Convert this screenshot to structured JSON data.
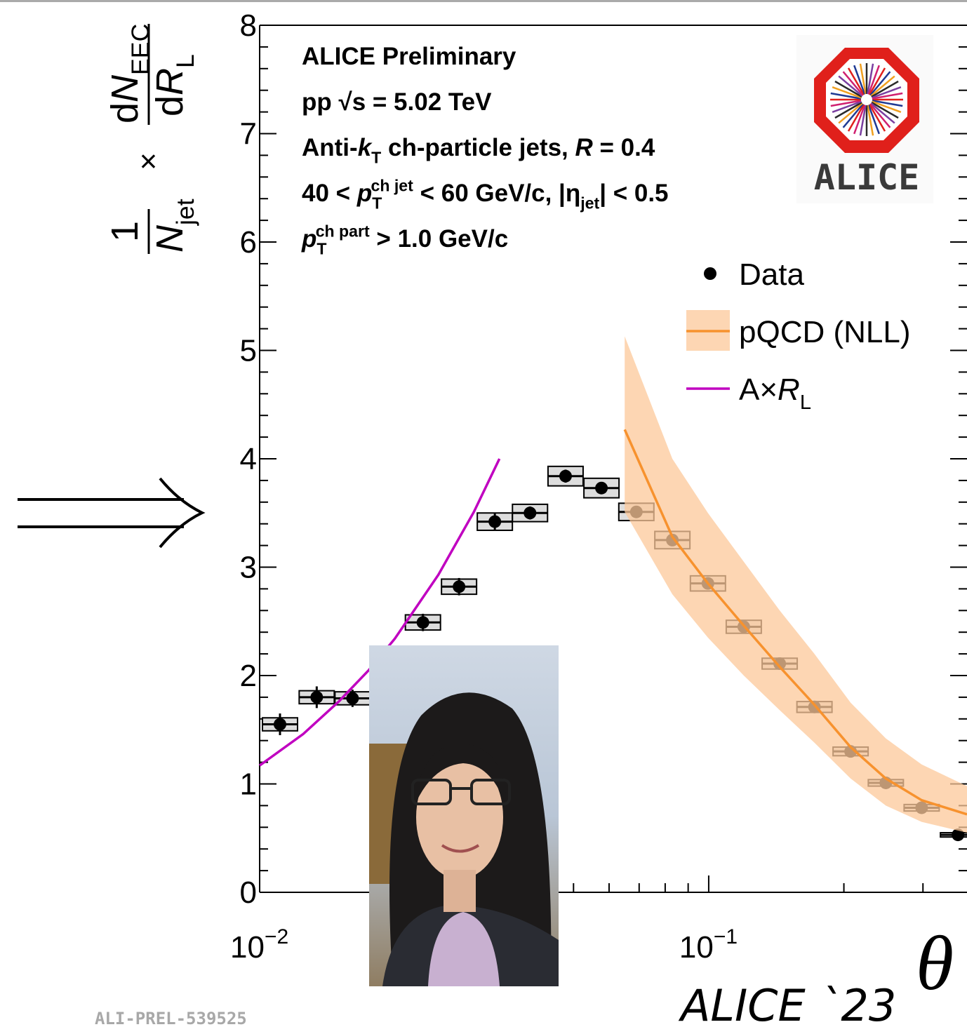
{
  "chart_data": {
    "type": "scatter",
    "xscale": "log",
    "xlim": [
      0.01,
      0.376
    ],
    "ylim": [
      0,
      8
    ],
    "xticks": [
      {
        "value": 0.01,
        "label": "10",
        "exponent": "−2"
      },
      {
        "value": 0.1,
        "label": "10",
        "exponent": "−1"
      }
    ],
    "xminor": [
      0.02,
      0.03,
      0.04,
      0.05,
      0.06,
      0.07,
      0.08,
      0.09,
      0.2,
      0.3
    ],
    "yticks": [
      0,
      1,
      2,
      3,
      4,
      5,
      6,
      7,
      8
    ],
    "yminor": [
      0.2,
      0.4,
      0.6,
      0.8,
      1.2,
      1.4,
      1.6,
      1.8,
      2.2,
      2.4,
      2.6,
      2.8,
      3.2,
      3.4,
      3.6,
      3.8,
      4.2,
      4.4,
      4.6,
      4.8,
      5.2,
      5.4,
      5.6,
      5.8,
      6.2,
      6.4,
      6.6,
      6.8,
      7.2,
      7.4,
      7.6,
      7.8
    ],
    "x_label": "θ",
    "y_label": {
      "num1": "1",
      "den1": [
        {
          "text": "N",
          "italic": true
        },
        {
          "text": "jet",
          "pos": "sub"
        }
      ],
      "times": "×",
      "num2": [
        {
          "text": "d"
        },
        {
          "text": "N",
          "italic": true
        },
        {
          "text": "EEC",
          "pos": "sub"
        }
      ],
      "den2": [
        {
          "text": "d"
        },
        {
          "text": "R",
          "italic": true
        },
        {
          "text": "L",
          "pos": "sub"
        }
      ]
    },
    "annotations": [
      [
        {
          "text": "ALICE Preliminary"
        }
      ],
      [
        {
          "text": "pp  √s = 5.02 TeV"
        }
      ],
      [
        {
          "text": "Anti-"
        },
        {
          "text": "k",
          "italic": true
        },
        {
          "text": "T",
          "pos": "sub"
        },
        {
          "text": " ch-particle jets,  "
        },
        {
          "text": "R",
          "italic": true
        },
        {
          "text": " = 0.4"
        }
      ],
      [
        {
          "text": "40 <  "
        },
        {
          "text": "p",
          "italic": true
        },
        {
          "text": "T",
          "pos": "sub"
        },
        {
          "text": "ch jet",
          "pos": "sup",
          "stacked": true
        },
        {
          "text": " < 60 GeV/c, |η"
        },
        {
          "text": "jet",
          "pos": "sub"
        },
        {
          "text": "| < 0.5"
        }
      ],
      [
        {
          "text": "p",
          "italic": true
        },
        {
          "text": "T",
          "pos": "sub"
        },
        {
          "text": "ch part",
          "pos": "sup",
          "stacked": true
        },
        {
          "text": " > 1.0 GeV/c"
        }
      ]
    ],
    "logo_text": "ALICE",
    "footer": "ALICE `23",
    "figure_id": "ALI-PREL-539525",
    "series": [
      {
        "name": [
          {
            "text": "Data"
          }
        ],
        "type": "errorbar",
        "color": "#000000",
        "box_color": "#dddddd",
        "x": [
          0.0111,
          0.0134,
          0.0161,
          0.0194,
          0.0231,
          0.0278,
          0.0334,
          0.04,
          0.048,
          0.0577,
          0.069,
          0.083,
          0.0996,
          0.1197,
          0.1439,
          0.172,
          0.207,
          0.248,
          0.298,
          0.359
        ],
        "values": [
          1.55,
          1.8,
          1.79,
          2.2,
          2.49,
          2.82,
          3.42,
          3.5,
          3.84,
          3.73,
          3.51,
          3.25,
          2.85,
          2.45,
          2.11,
          1.71,
          1.3,
          1.01,
          0.78,
          0.53
        ],
        "errors": [
          0.1,
          0.1,
          0.08,
          0.08,
          0.08,
          0.08,
          0.08,
          0.06,
          0.06,
          0.05,
          0.04,
          0.04,
          0.03,
          0.03,
          0.02,
          0.02,
          0.02,
          0.02,
          0.02,
          0.02
        ],
        "sys_errors": [
          0.06,
          0.06,
          0.06,
          0.07,
          0.07,
          0.07,
          0.08,
          0.08,
          0.09,
          0.09,
          0.08,
          0.08,
          0.07,
          0.06,
          0.05,
          0.05,
          0.04,
          0.03,
          0.03,
          0.02
        ]
      },
      {
        "name": [
          {
            "text": "pQCD (NLL)"
          }
        ],
        "type": "band-line",
        "color": "#f7922e",
        "band_color": "#fcc89a",
        "x": [
          0.065,
          0.083,
          0.0996,
          0.1197,
          0.1439,
          0.172,
          0.207,
          0.248,
          0.298,
          0.376
        ],
        "values": [
          4.27,
          3.28,
          2.85,
          2.46,
          2.08,
          1.73,
          1.34,
          1.05,
          0.85,
          0.72
        ],
        "upper": [
          5.13,
          4.0,
          3.5,
          3.05,
          2.6,
          2.2,
          1.75,
          1.42,
          1.18,
          0.98
        ],
        "lower": [
          3.51,
          2.75,
          2.35,
          2.0,
          1.68,
          1.38,
          1.05,
          0.8,
          0.65,
          0.55
        ]
      },
      {
        "name": [
          {
            "text": "A×"
          },
          {
            "text": "R",
            "italic": true
          },
          {
            "text": "L",
            "pos": "sub"
          }
        ],
        "type": "line",
        "color": "#c000c0",
        "x": [
          0.01,
          0.0125,
          0.015,
          0.0175,
          0.02,
          0.025,
          0.03,
          0.0342
        ],
        "values": [
          1.17,
          1.46,
          1.76,
          2.05,
          2.34,
          2.93,
          3.51,
          4.0
        ]
      }
    ]
  }
}
